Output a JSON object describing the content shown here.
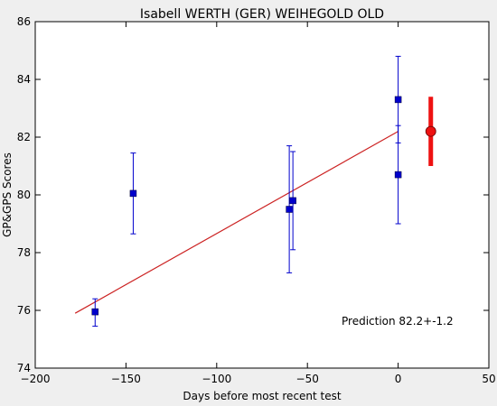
{
  "chart_data": {
    "type": "scatter",
    "title": "Isabell WERTH (GER) WEIHEGOLD OLD",
    "xlabel": "Days before most recent test",
    "ylabel": "GP&GPS Scores",
    "xlim": [
      -200,
      50
    ],
    "ylim": [
      74,
      86
    ],
    "xticks": [
      -200,
      -150,
      -100,
      -50,
      0,
      50
    ],
    "yticks": [
      74,
      76,
      78,
      80,
      82,
      84,
      86
    ],
    "xtick_labels": [
      "−200",
      "−150",
      "−100",
      "−50",
      "0",
      "50"
    ],
    "ytick_labels": [
      "74",
      "76",
      "78",
      "80",
      "82",
      "84",
      "86"
    ],
    "grid": false,
    "series": [
      {
        "kind": "scatter-errorbar",
        "color": "#0000cc",
        "points": [
          {
            "x": -167,
            "y": 75.95,
            "err_low": 0.5,
            "err_high": 0.45
          },
          {
            "x": -146,
            "y": 80.05,
            "err_low": 1.4,
            "err_high": 1.4
          },
          {
            "x": -60,
            "y": 79.5,
            "err_low": 2.2,
            "err_high": 2.2
          },
          {
            "x": -58,
            "y": 79.8,
            "err_low": 1.7,
            "err_high": 1.7
          },
          {
            "x": 0,
            "y": 83.3,
            "err_low": 1.5,
            "err_high": 1.5
          },
          {
            "x": 0,
            "y": 80.7,
            "err_low": 1.7,
            "err_high": 1.7
          }
        ]
      },
      {
        "kind": "fit-line",
        "color": "#cc2222",
        "x": [
          -178,
          0
        ],
        "y": [
          75.9,
          82.2
        ]
      },
      {
        "kind": "prediction",
        "color": "#ee1111",
        "x": 18,
        "y": 82.2,
        "err": 1.2
      }
    ],
    "annotation": "Prediction 82.2+-1.2"
  }
}
